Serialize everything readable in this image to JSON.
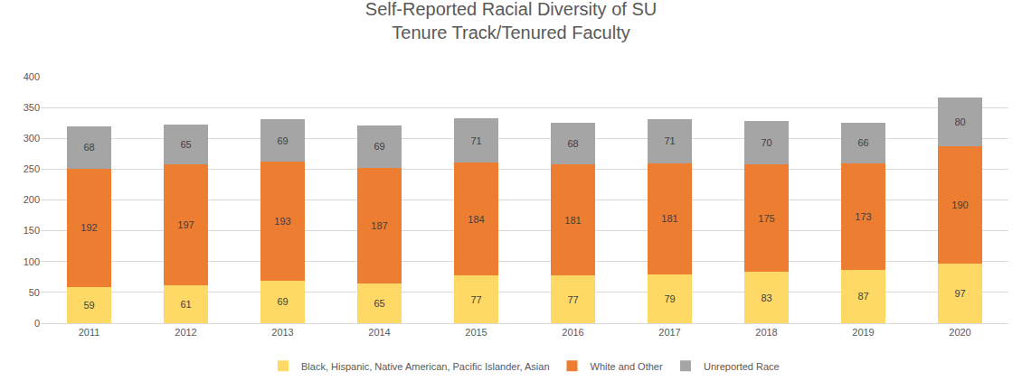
{
  "chart_data": {
    "type": "bar",
    "title": "Self-Reported Racial Diversity of SU\nTenure Track/Tenured Faculty",
    "categories": [
      "2011",
      "2012",
      "2013",
      "2014",
      "2015",
      "2016",
      "2017",
      "2018",
      "2019",
      "2020"
    ],
    "series": [
      {
        "name": "Black, Hispanic, Native American, Pacific Islander, Asian",
        "color": "#FFD966",
        "values": [
          59,
          61,
          69,
          65,
          77,
          77,
          79,
          83,
          87,
          97
        ]
      },
      {
        "name": "White and Other",
        "color": "#ED7D31",
        "values": [
          192,
          197,
          193,
          187,
          184,
          181,
          181,
          175,
          173,
          190
        ]
      },
      {
        "name": "Unreported Race",
        "color": "#A5A5A5",
        "values": [
          68,
          65,
          69,
          69,
          71,
          68,
          71,
          70,
          66,
          80
        ]
      }
    ],
    "ylim": [
      0,
      400
    ],
    "yticks": [
      0,
      50,
      100,
      150,
      200,
      250,
      300,
      350,
      400
    ],
    "stacked": true,
    "data_labels": true,
    "grid": true,
    "legend": "bottom"
  }
}
